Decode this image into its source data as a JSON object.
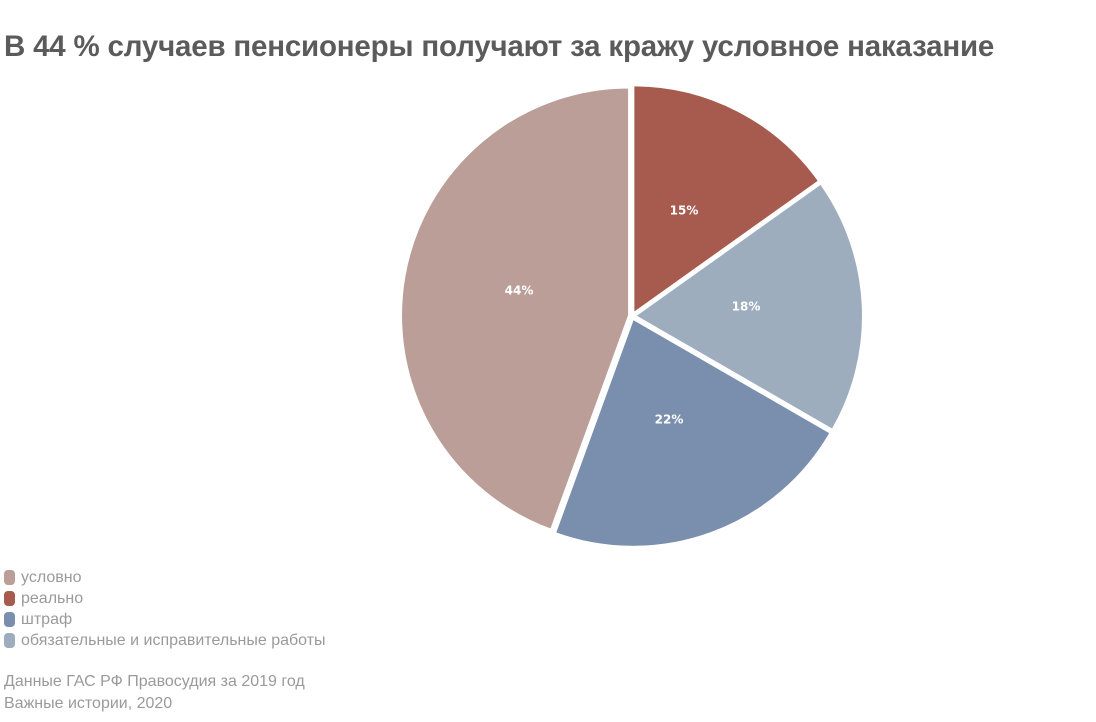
{
  "title": "В 44 % случаев пенсионеры получают за кражу условное наказание",
  "legend": [
    {
      "label": "условно",
      "color": "#BA9E97"
    },
    {
      "label": "реально",
      "color": "#A65B4E"
    },
    {
      "label": "штраф",
      "color": "#7A8EAD"
    },
    {
      "label": "обязательные и исправительные работы",
      "color": "#9EADBD"
    }
  ],
  "source": {
    "line1": "Данные ГАС РФ Правосудия за 2019 год",
    "line2": "Важные истории, 2020"
  },
  "chart_data": {
    "type": "pie",
    "title": "В 44 % случаев пенсионеры получают за кражу условное наказание",
    "categories": [
      "реально",
      "обязательные и исправительные работы",
      "штраф",
      "условно"
    ],
    "values": [
      15,
      18,
      22,
      44
    ],
    "labels": [
      "15%",
      "18%",
      "22%",
      "44%"
    ],
    "colors": [
      "#A65B4E",
      "#9EADBD",
      "#7A8EAD",
      "#BA9E97"
    ],
    "start_angle": "top, clockwise",
    "legend_position": "bottom-left",
    "legend_order": [
      "условно",
      "реально",
      "штраф",
      "обязательные и исправительные работы"
    ]
  }
}
